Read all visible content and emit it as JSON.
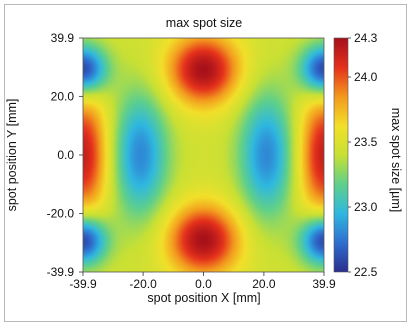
{
  "chart_data": {
    "type": "heatmap",
    "title": "max spot size",
    "xlabel": "spot position X [mm]",
    "ylabel": "spot position Y [mm]",
    "colorbar_label": "max spot size [µm]",
    "xlim": [
      -39.9,
      39.9
    ],
    "ylim": [
      -39.9,
      39.9
    ],
    "zlim": [
      22.5,
      24.3
    ],
    "x_ticks": [
      {
        "value": -39.9,
        "label": "-39.9"
      },
      {
        "value": -20.0,
        "label": "-20.0"
      },
      {
        "value": 0.0,
        "label": "0.0"
      },
      {
        "value": 20.0,
        "label": "20.0"
      },
      {
        "value": 39.9,
        "label": "39.9"
      }
    ],
    "y_ticks": [
      {
        "value": 39.9,
        "label": "39.9"
      },
      {
        "value": 20.0,
        "label": "20.0"
      },
      {
        "value": 0.0,
        "label": "0.0"
      },
      {
        "value": -20.0,
        "label": "-20.0"
      },
      {
        "value": -39.9,
        "label": "-39.9"
      }
    ],
    "colorbar_ticks": [
      {
        "value": 24.3,
        "label": "24.3"
      },
      {
        "value": 24.0,
        "label": "24.0"
      },
      {
        "value": 23.5,
        "label": "23.5"
      },
      {
        "value": 23.0,
        "label": "23.0"
      },
      {
        "value": 22.5,
        "label": "22.5"
      }
    ],
    "colormap": [
      "#2a2f8f",
      "#2f6fd0",
      "#2fb8e0",
      "#60d08a",
      "#c8e034",
      "#f2e02a",
      "#f39a1e",
      "#e5311c",
      "#a8111a"
    ],
    "features": [
      {
        "kind": "max",
        "x": 0.0,
        "y": 29.0,
        "value": 24.3
      },
      {
        "kind": "max",
        "x": 0.0,
        "y": -29.0,
        "value": 24.3
      },
      {
        "kind": "max",
        "x": -39.9,
        "y": 0.0,
        "value": 24.2
      },
      {
        "kind": "max",
        "x": 39.9,
        "y": 0.0,
        "value": 24.2
      },
      {
        "kind": "min",
        "x": -21.0,
        "y": 0.0,
        "value": 22.8
      },
      {
        "kind": "min",
        "x": 21.0,
        "y": 0.0,
        "value": 22.8
      },
      {
        "kind": "min",
        "x": -39.9,
        "y": 29.0,
        "value": 22.5
      },
      {
        "kind": "min",
        "x": 39.9,
        "y": 29.0,
        "value": 22.5
      },
      {
        "kind": "min",
        "x": -39.9,
        "y": -29.0,
        "value": 22.5
      },
      {
        "kind": "min",
        "x": 39.9,
        "y": -29.0,
        "value": 22.5
      }
    ],
    "colorbar_position": "right",
    "grid": false
  }
}
